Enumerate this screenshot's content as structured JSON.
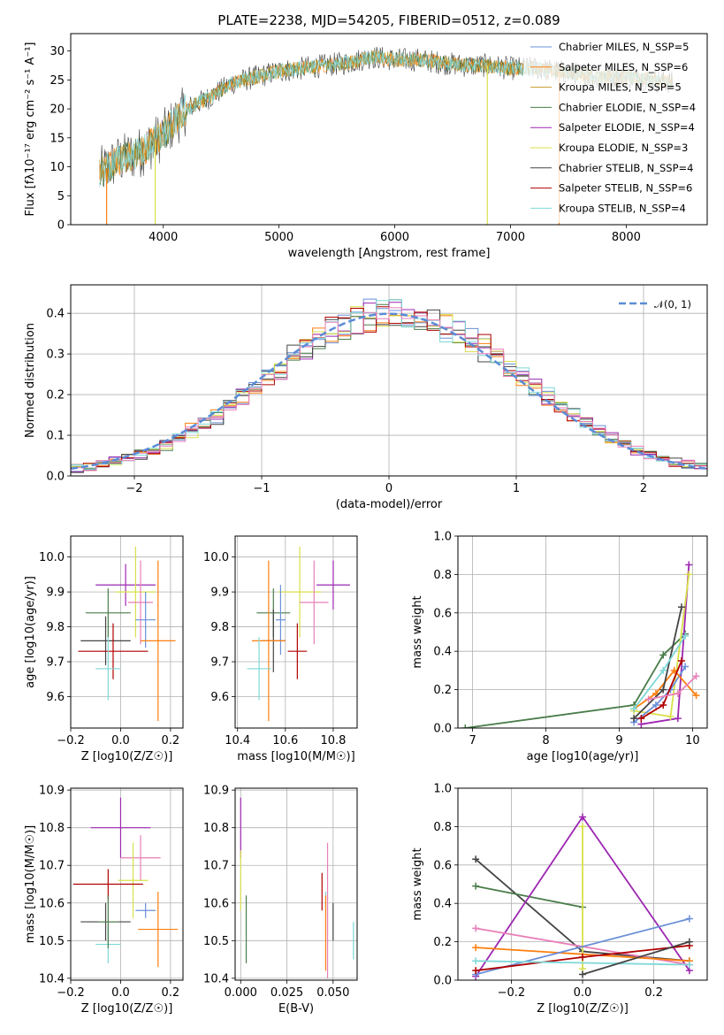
{
  "figure": {
    "title": "PLATE=2238, MJD=54205, FIBERID=0512, z=0.089"
  },
  "colors": {
    "Chabrier MILES": "#6a8fd8",
    "Salpeter MILES": "#ff7f0e",
    "Kroupa MILES": "#c49a2a",
    "Chabrier ELODIE": "#4a7d4a",
    "Salpeter ELODIE": "#9c27b0",
    "Kroupa ELODIE": "#d8e04a",
    "Chabrier STELIB": "#444444",
    "Salpeter STELIB": "#b00000",
    "Kroupa STELIB": "#7fd8d8",
    "pink": "#e87fb8",
    "normal": "#5b8bd6"
  },
  "chart_data": [
    {
      "id": "spectrum",
      "type": "line",
      "xlabel": "wavelength [Angstrom, rest frame]",
      "ylabel": "Flux [fλ10⁻¹⁷ erg cm⁻² s⁻¹ A⁻¹]",
      "xlim": [
        3200,
        8700
      ],
      "ylim": [
        0,
        33
      ],
      "xticks": [
        "4000",
        "5000",
        "6000",
        "7000",
        "8000"
      ],
      "yticks": [
        "0",
        "5",
        "10",
        "15",
        "20",
        "25",
        "30"
      ],
      "continuum": {
        "x": [
          3450,
          3600,
          3800,
          4000,
          4200,
          4400,
          4600,
          4800,
          5000,
          5200,
          5400,
          5600,
          5800,
          6000,
          6200,
          6400,
          6600,
          6800,
          7000,
          7200,
          7400,
          7600,
          7800,
          8000,
          8200,
          8400
        ],
        "y": [
          9,
          11,
          12.5,
          15.5,
          20,
          22,
          24.5,
          25.5,
          26.5,
          27,
          27.5,
          28,
          29,
          28.5,
          28.5,
          28,
          27.5,
          27.5,
          27,
          27,
          26.5,
          26,
          25.5,
          25.5,
          25,
          24.5
        ]
      },
      "legend": [
        "Chabrier MILES, N_SSP=5",
        "Salpeter MILES, N_SSP=6",
        "Kroupa MILES, N_SSP=5",
        "Chabrier ELODIE, N_SSP=4",
        "Salpeter ELODIE, N_SSP=4",
        "Kroupa ELODIE, N_SSP=3",
        "Chabrier STELIB, N_SSP=4",
        "Salpeter STELIB, N_SSP=6",
        "Kroupa STELIB, N_SSP=4"
      ]
    },
    {
      "id": "residuals",
      "type": "histogram",
      "xlabel": "(data-model)/error",
      "ylabel": "Normed distribution",
      "xlim": [
        -2.5,
        2.5
      ],
      "ylim": [
        0,
        0.47
      ],
      "xticks": [
        "−2",
        "−1",
        "0",
        "1",
        "2"
      ],
      "yticks": [
        "0.0",
        "0.1",
        "0.2",
        "0.3",
        "0.4"
      ],
      "legend": [
        "𝒩(0, 1)"
      ]
    },
    {
      "id": "age_vs_Z",
      "type": "errorbar",
      "xlabel": "Z [log10(Z/Z☉)]",
      "ylabel": "age  [log10(age/yr)]",
      "xlim": [
        -0.2,
        0.25
      ],
      "ylim": [
        9.51,
        10.06
      ],
      "xticks": [
        "−0.2",
        "0.0",
        "0.2"
      ],
      "yticks": [
        "9.6",
        "9.7",
        "9.8",
        "9.9",
        "10.0"
      ],
      "points": [
        {
          "x": 0.02,
          "y": 9.92,
          "xerr": 0.12,
          "yerr": 0.06,
          "c": "Salpeter ELODIE"
        },
        {
          "x": 0.06,
          "y": 9.9,
          "xerr": 0.08,
          "yerr": 0.13,
          "c": "Kroupa ELODIE"
        },
        {
          "x": 0.08,
          "y": 9.87,
          "xerr": 0.05,
          "yerr": 0.12,
          "c": "pink"
        },
        {
          "x": -0.05,
          "y": 9.84,
          "xerr": 0.09,
          "yerr": 0.07,
          "c": "Chabrier ELODIE"
        },
        {
          "x": 0.1,
          "y": 9.82,
          "xerr": 0.04,
          "yerr": 0.08,
          "c": "Chabrier MILES"
        },
        {
          "x": -0.06,
          "y": 9.76,
          "xerr": 0.1,
          "yerr": 0.07,
          "c": "Chabrier STELIB"
        },
        {
          "x": 0.15,
          "y": 9.76,
          "xerr": 0.07,
          "yerr": 0.23,
          "c": "Salpeter MILES"
        },
        {
          "x": -0.03,
          "y": 9.73,
          "xerr": 0.14,
          "yerr": 0.08,
          "c": "Salpeter STELIB"
        },
        {
          "x": -0.05,
          "y": 9.68,
          "xerr": 0.05,
          "yerr": 0.09,
          "c": "Kroupa STELIB"
        }
      ]
    },
    {
      "id": "age_vs_mass",
      "type": "errorbar",
      "xlabel": "mass [log10(M/M☉)]",
      "ylabel": "",
      "xlim": [
        10.39,
        10.9
      ],
      "ylim": [
        9.51,
        10.06
      ],
      "xticks": [
        "10.4",
        "10.6",
        "10.8"
      ],
      "yticks": [
        "9.6",
        "9.7",
        "9.8",
        "9.9",
        "10.0"
      ],
      "points": [
        {
          "x": 10.8,
          "y": 9.92,
          "xerr": 0.07,
          "yerr": 0.07,
          "c": "Salpeter ELODIE"
        },
        {
          "x": 10.66,
          "y": 9.9,
          "xerr": 0.09,
          "yerr": 0.13,
          "c": "Kroupa ELODIE"
        },
        {
          "x": 10.72,
          "y": 9.87,
          "xerr": 0.06,
          "yerr": 0.12,
          "c": "pink"
        },
        {
          "x": 10.55,
          "y": 9.84,
          "xerr": 0.07,
          "yerr": 0.07,
          "c": "Chabrier ELODIE"
        },
        {
          "x": 10.58,
          "y": 9.82,
          "xerr": 0.02,
          "yerr": 0.1,
          "c": "Chabrier MILES"
        },
        {
          "x": 10.55,
          "y": 9.76,
          "xerr": 0.05,
          "yerr": 0.09,
          "c": "Chabrier STELIB"
        },
        {
          "x": 10.53,
          "y": 9.76,
          "xerr": 0.07,
          "yerr": 0.23,
          "c": "Salpeter MILES"
        },
        {
          "x": 10.65,
          "y": 9.73,
          "xerr": 0.04,
          "yerr": 0.08,
          "c": "Salpeter STELIB"
        },
        {
          "x": 10.49,
          "y": 9.68,
          "xerr": 0.05,
          "yerr": 0.09,
          "c": "Kroupa STELIB"
        }
      ]
    },
    {
      "id": "weight_vs_age",
      "type": "line",
      "xlabel": "age  [log10(age/yr)]",
      "ylabel": "mass weight",
      "xlim": [
        6.8,
        10.2
      ],
      "ylim": [
        0,
        1
      ],
      "xticks": [
        "7",
        "8",
        "9",
        "10"
      ],
      "yticks": [
        "0.0",
        "0.2",
        "0.4",
        "0.6",
        "0.8",
        "1.0"
      ],
      "series": [
        {
          "c": "Chabrier ELODIE",
          "x": [
            6.9,
            9.2,
            9.6,
            9.9
          ],
          "y": [
            0.0,
            0.12,
            0.38,
            0.49
          ]
        },
        {
          "c": "Salpeter ELODIE",
          "x": [
            9.3,
            9.8,
            9.95
          ],
          "y": [
            0.02,
            0.05,
            0.85
          ]
        },
        {
          "c": "Kroupa ELODIE",
          "x": [
            9.2,
            9.7,
            9.95
          ],
          "y": [
            0.09,
            0.06,
            0.8
          ]
        },
        {
          "c": "Chabrier MILES",
          "x": [
            9.2,
            9.5,
            9.7,
            9.9
          ],
          "y": [
            0.03,
            0.12,
            0.2,
            0.32
          ]
        },
        {
          "c": "Salpeter MILES",
          "x": [
            9.2,
            9.5,
            9.75,
            10.05
          ],
          "y": [
            0.1,
            0.18,
            0.3,
            0.17
          ]
        },
        {
          "c": "Chabrier STELIB",
          "x": [
            9.2,
            9.6,
            9.85
          ],
          "y": [
            0.05,
            0.2,
            0.63
          ]
        },
        {
          "c": "Salpeter STELIB",
          "x": [
            9.3,
            9.6,
            9.85
          ],
          "y": [
            0.05,
            0.12,
            0.35
          ]
        },
        {
          "c": "Kroupa STELIB",
          "x": [
            9.2,
            9.6,
            9.9
          ],
          "y": [
            0.1,
            0.3,
            0.48
          ]
        },
        {
          "c": "pink",
          "x": [
            9.4,
            9.8,
            10.05
          ],
          "y": [
            0.15,
            0.18,
            0.27
          ]
        }
      ]
    },
    {
      "id": "mass_vs_Z",
      "type": "errorbar",
      "xlabel": "Z [log10(Z/Z☉)]",
      "ylabel": "mass [log10(M/M☉)]",
      "xlim": [
        -0.2,
        0.25
      ],
      "ylim": [
        10.395,
        10.905
      ],
      "xticks": [
        "−0.2",
        "0.0",
        "0.2"
      ],
      "yticks": [
        "10.4",
        "10.5",
        "10.6",
        "10.7",
        "10.8",
        "10.9"
      ],
      "points": [
        {
          "x": 0.0,
          "y": 10.8,
          "xerr": 0.12,
          "yerr": 0.08,
          "c": "Salpeter ELODIE"
        },
        {
          "x": 0.08,
          "y": 10.72,
          "xerr": 0.08,
          "yerr": 0.06,
          "c": "pink"
        },
        {
          "x": 0.05,
          "y": 10.66,
          "xerr": 0.06,
          "yerr": 0.1,
          "c": "Kroupa ELODIE"
        },
        {
          "x": -0.05,
          "y": 10.65,
          "xerr": 0.14,
          "yerr": 0.04,
          "c": "Salpeter STELIB"
        },
        {
          "x": 0.1,
          "y": 10.58,
          "xerr": 0.04,
          "yerr": 0.02,
          "c": "Chabrier MILES"
        },
        {
          "x": -0.06,
          "y": 10.55,
          "xerr": 0.1,
          "yerr": 0.05,
          "c": "Chabrier STELIB"
        },
        {
          "x": 0.15,
          "y": 10.53,
          "xerr": 0.08,
          "yerr": 0.1,
          "c": "Salpeter MILES"
        },
        {
          "x": -0.05,
          "y": 10.49,
          "xerr": 0.05,
          "yerr": 0.05,
          "c": "Kroupa STELIB"
        },
        {
          "x": -0.05,
          "y": 10.55,
          "xerr": 0.04,
          "yerr": 0.07,
          "c": "Chabrier ELODIE"
        }
      ]
    },
    {
      "id": "mass_vs_ebv",
      "type": "errorbar",
      "xlabel": "E(B-V)",
      "ylabel": "",
      "xlim": [
        -0.003,
        0.063
      ],
      "ylim": [
        10.395,
        10.905
      ],
      "xticks": [
        "0.000",
        "0.025",
        "0.050"
      ],
      "yticks": [
        "10.4",
        "10.5",
        "10.6",
        "10.7",
        "10.8",
        "10.9"
      ],
      "points": [
        {
          "x": 0.0,
          "y": 10.8,
          "xerr": 0,
          "yerr": 0.08,
          "c": "Salpeter ELODIE"
        },
        {
          "x": 0.0,
          "y": 10.66,
          "xerr": 0,
          "yerr": 0.08,
          "c": "Kroupa ELODIE"
        },
        {
          "x": 0.003,
          "y": 10.53,
          "xerr": 0,
          "yerr": 0.09,
          "c": "Chabrier ELODIE"
        },
        {
          "x": 0.044,
          "y": 10.63,
          "xerr": 0,
          "yerr": 0.05,
          "c": "Salpeter STELIB"
        },
        {
          "x": 0.046,
          "y": 10.6,
          "xerr": 0,
          "yerr": 0.03,
          "c": "Kroupa STELIB"
        },
        {
          "x": 0.047,
          "y": 10.58,
          "xerr": 0,
          "yerr": 0.18,
          "c": "pink"
        },
        {
          "x": 0.046,
          "y": 10.52,
          "xerr": 0,
          "yerr": 0.1,
          "c": "Salpeter MILES"
        },
        {
          "x": 0.05,
          "y": 10.55,
          "xerr": 0,
          "yerr": 0.05,
          "c": "Chabrier STELIB"
        },
        {
          "x": 0.061,
          "y": 10.5,
          "xerr": 0,
          "yerr": 0.05,
          "c": "Kroupa STELIB"
        }
      ]
    },
    {
      "id": "weight_vs_Z",
      "type": "line",
      "xlabel": "Z [log10(Z/Z☉)]",
      "ylabel": "mass weight",
      "xlim": [
        -0.35,
        0.35
      ],
      "ylim": [
        0,
        1
      ],
      "xticks": [
        "−0.2",
        "0.0",
        "0.2"
      ],
      "yticks": [
        "0.0",
        "0.2",
        "0.4",
        "0.6",
        "0.8",
        "1.0"
      ],
      "series": [
        {
          "c": "Chabrier STELIB",
          "x": [
            -0.3,
            0.0,
            0.3
          ],
          "y": [
            0.63,
            0.15,
            0.1
          ]
        },
        {
          "c": "Chabrier ELODIE",
          "x": [
            -0.3,
            0.0
          ],
          "y": [
            0.49,
            0.38
          ]
        },
        {
          "c": "Salpeter ELODIE",
          "x": [
            -0.3,
            0.0,
            0.3
          ],
          "y": [
            0.02,
            0.85,
            0.05
          ]
        },
        {
          "c": "Kroupa ELODIE",
          "x": [
            0.0,
            0.0
          ],
          "y": [
            0.06,
            0.8
          ]
        },
        {
          "c": "pink",
          "x": [
            -0.3,
            0.3
          ],
          "y": [
            0.27,
            0.08
          ]
        },
        {
          "c": "Salpeter MILES",
          "x": [
            -0.3,
            0.3
          ],
          "y": [
            0.17,
            0.1
          ]
        },
        {
          "c": "Chabrier MILES",
          "x": [
            -0.3,
            0.3
          ],
          "y": [
            0.03,
            0.32
          ]
        },
        {
          "c": "Salpeter STELIB",
          "x": [
            -0.3,
            0.0,
            0.3
          ],
          "y": [
            0.05,
            0.12,
            0.18
          ]
        },
        {
          "c": "Kroupa STELIB",
          "x": [
            -0.3,
            0.3
          ],
          "y": [
            0.1,
            0.08
          ]
        },
        {
          "c": "Chabrier STELIB",
          "x": [
            0.0,
            0.3
          ],
          "y": [
            0.03,
            0.2
          ]
        }
      ]
    }
  ]
}
